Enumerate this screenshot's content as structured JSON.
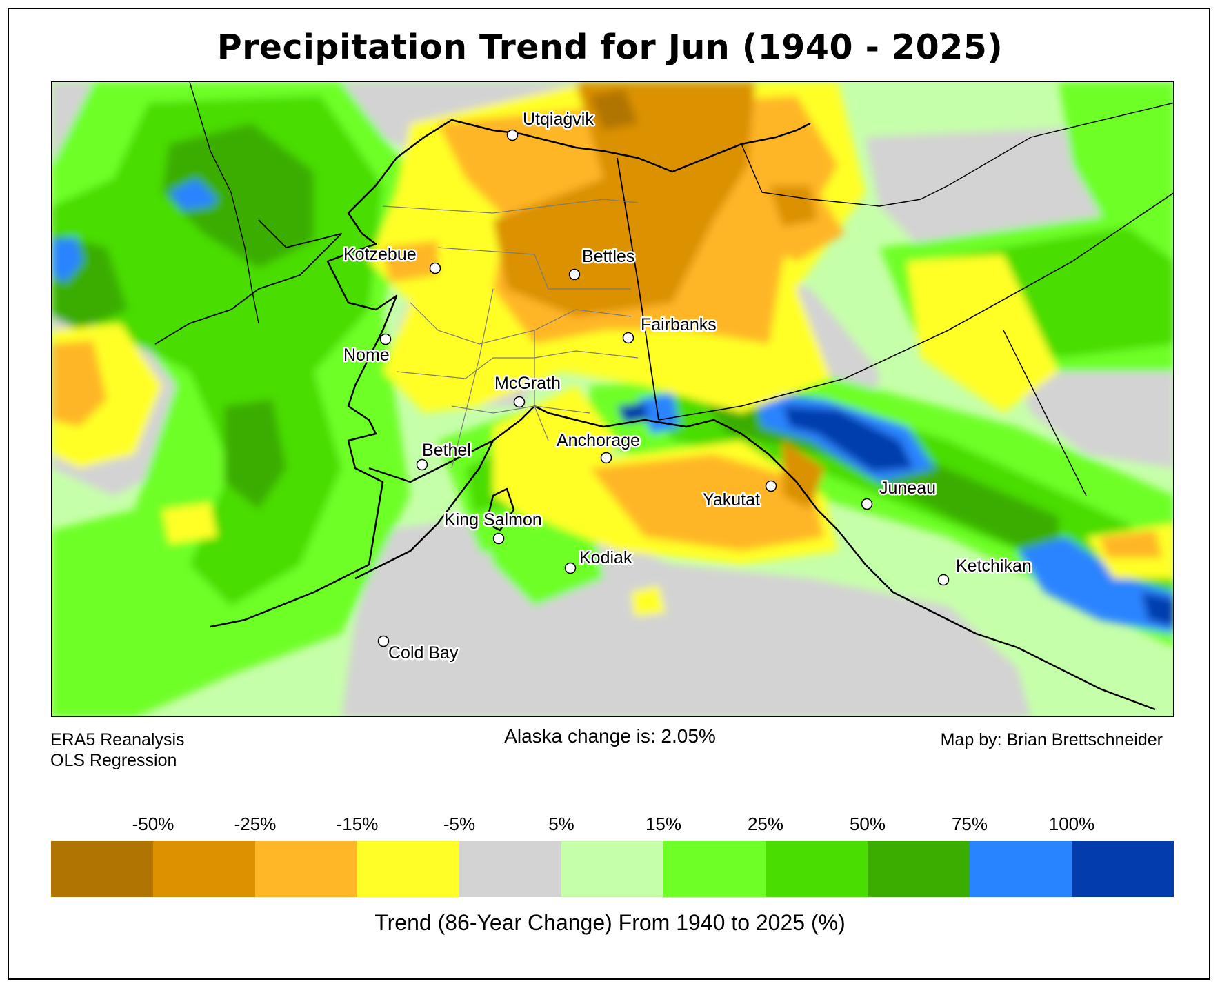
{
  "title": "Precipitation Trend for Jun (1940 - 2025)",
  "footer": {
    "source_line1": "ERA5 Reanalysis",
    "source_line2": "OLS Regression",
    "alaska_change": "Alaska change is: 2.05%",
    "credit": "Map by: Brian Brettschneider"
  },
  "legend": {
    "title": "Trend (86-Year Change) From 1940 to 2025 (%)",
    "tick_labels": [
      "-50%",
      "-25%",
      "-15%",
      "-5%",
      "5%",
      "15%",
      "25%",
      "50%",
      "75%",
      "100%"
    ],
    "colors": [
      "#b07400",
      "#db9100",
      "#ffb627",
      "#ffff27",
      "#d3d3d3",
      "#c6ffaa",
      "#6eff27",
      "#4add00",
      "#3aad00",
      "#2984ff",
      "#023cad"
    ]
  },
  "cities": [
    {
      "name": "Utqiaġvik"
    },
    {
      "name": "Kotzebue"
    },
    {
      "name": "Bettles"
    },
    {
      "name": "Fairbanks"
    },
    {
      "name": "Nome"
    },
    {
      "name": "McGrath"
    },
    {
      "name": "Anchorage"
    },
    {
      "name": "Bethel"
    },
    {
      "name": "Yakutat"
    },
    {
      "name": "Juneau"
    },
    {
      "name": "King Salmon"
    },
    {
      "name": "Kodiak"
    },
    {
      "name": "Ketchikan"
    },
    {
      "name": "Cold Bay"
    }
  ],
  "chart_data": {
    "type": "heatmap",
    "title": "Precipitation Trend for Jun (1940 - 2025)",
    "region": "Alaska",
    "variable": "Precipitation trend",
    "units": "%",
    "period": [
      1940,
      2025
    ],
    "statewide_change_percent": 2.05,
    "colorbar": {
      "label": "Trend (86-Year Change) From 1940 to 2025 (%)",
      "boundaries": [
        -50,
        -25,
        -15,
        -5,
        5,
        15,
        25,
        50,
        75,
        100
      ],
      "colors": [
        "#b07400",
        "#db9100",
        "#ffb627",
        "#ffff27",
        "#d3d3d3",
        "#c6ffaa",
        "#6eff27",
        "#4add00",
        "#3aad00",
        "#2984ff",
        "#023cad"
      ]
    },
    "cities": [
      "Utqiaġvik",
      "Kotzebue",
      "Bettles",
      "Fairbanks",
      "Nome",
      "McGrath",
      "Anchorage",
      "Bethel",
      "Yakutat",
      "Juneau",
      "King Salmon",
      "Kodiak",
      "Ketchikan",
      "Cold Bay"
    ]
  }
}
